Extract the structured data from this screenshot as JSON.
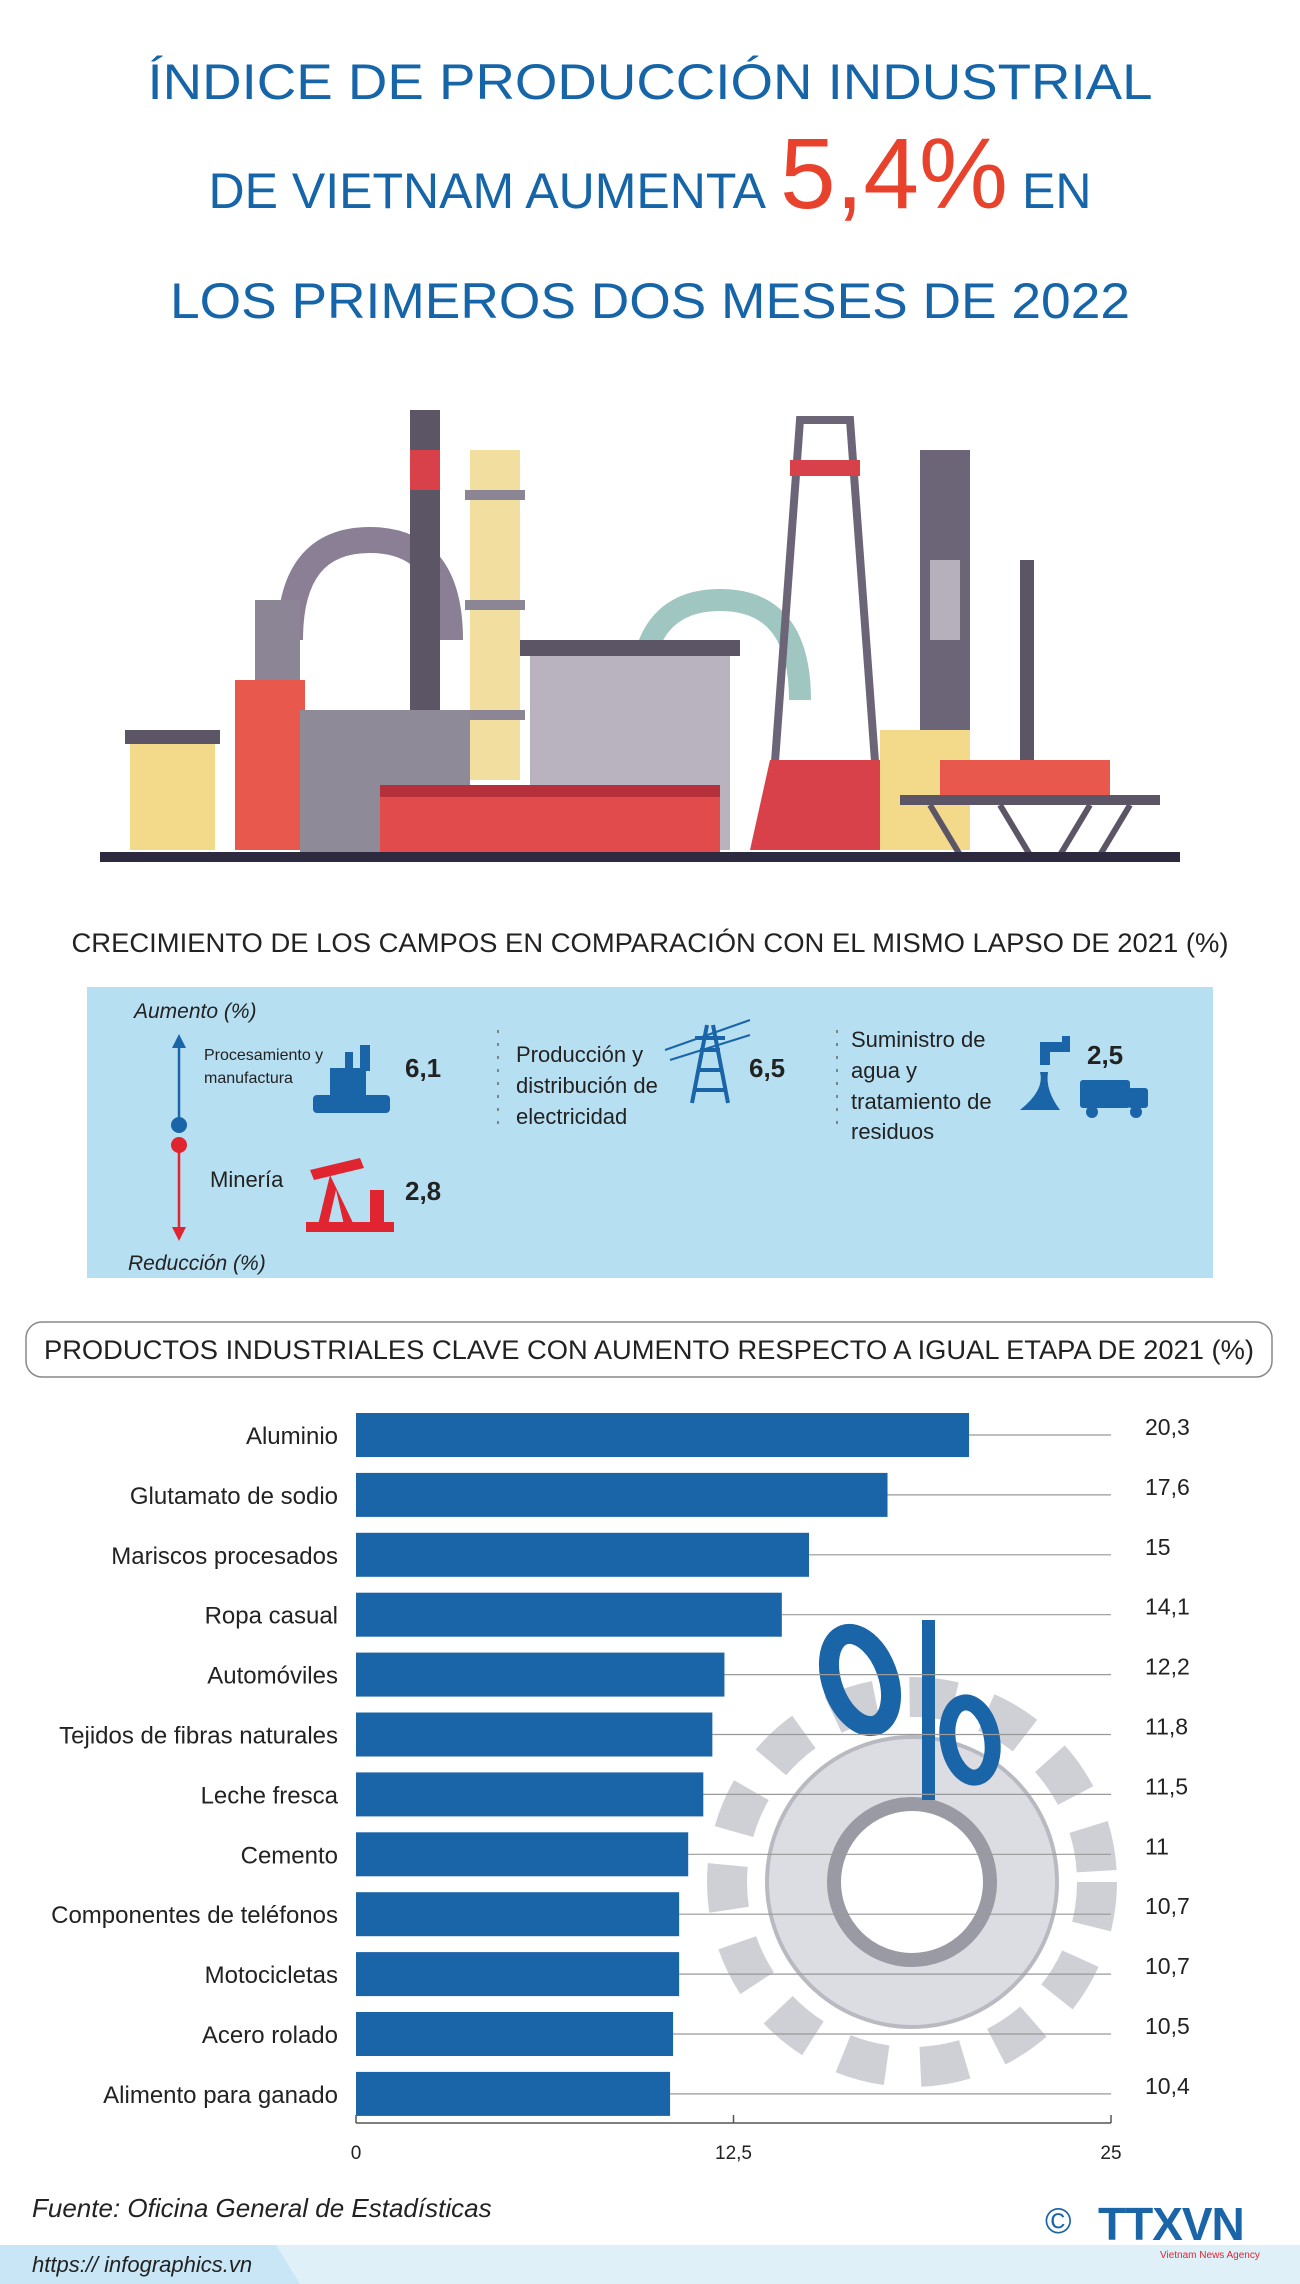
{
  "title": {
    "line1": "ÍNDICE DE PRODUCCIÓN INDUSTRIAL",
    "line2_before": "DE VIETNAM AUMENTA",
    "highlight": "5,4%",
    "line2_after": "EN",
    "line3": "LOS PRIMEROS DOS MESES DE 2022"
  },
  "growth_section": {
    "title": "CRECIMIENTO DE LOS CAMPOS EN COMPARACIÓN CON EL MISMO LAPSO DE 2021 (%)",
    "up_label": "Aumento (%)",
    "down_label": "Reducción (%)",
    "items": [
      {
        "label": "Procesamiento y manufactura",
        "value": "6,1"
      },
      {
        "label": "Minería",
        "value": "2,8"
      },
      {
        "label": "Producción y distribución de electricidad",
        "value": "6,5"
      },
      {
        "label": "Suministro de agua y tratamiento de residuos",
        "value": "2,5"
      }
    ]
  },
  "chart_data": {
    "type": "hbar",
    "title": "PRODUCTOS INDUSTRIALES CLAVE CON AUMENTO RESPECTO A IGUAL ETAPA DE 2021 (%)",
    "categories": [
      "Aluminio",
      "Glutamato de sodio",
      "Mariscos procesados",
      "Ropa casual",
      "Automóviles",
      "Tejidos de fibras naturales",
      "Leche fresca",
      "Cemento",
      "Componentes de teléfonos",
      "Motocicletas",
      "Acero rolado",
      "Alimento para ganado"
    ],
    "values": [
      20.3,
      17.6,
      15,
      14.1,
      12.2,
      11.8,
      11.5,
      11,
      10.7,
      10.7,
      10.5,
      10.4
    ],
    "value_labels": [
      "20,3",
      "17,6",
      "15",
      "14,1",
      "12,2",
      "11,8",
      "11,5",
      "11",
      "10,7",
      "10,7",
      "10,5",
      "10,4"
    ],
    "color": "#1a64a8",
    "xlim": [
      0,
      25
    ],
    "xticks": [
      0,
      {
        "value": 12.5,
        "label": "12,5"
      },
      25
    ]
  },
  "source": "Fuente: Oficina General de Estadísticas",
  "url": "https:// infographics.vn",
  "logo": {
    "symbol": "©",
    "name": "TTXVN",
    "subtitle": "Vietnam News Agency"
  }
}
